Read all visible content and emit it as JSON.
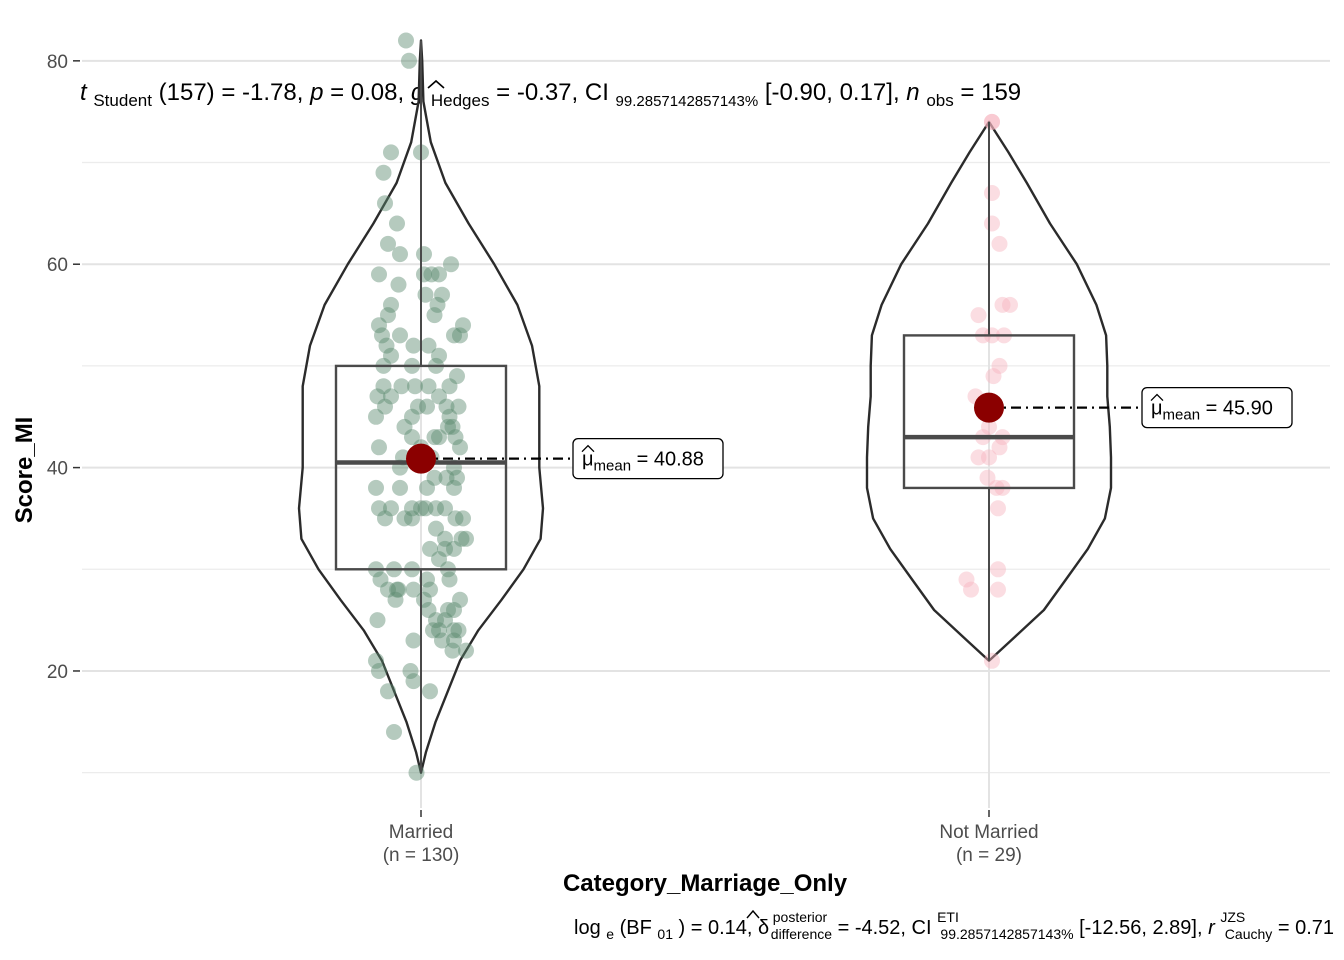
{
  "subtitle": {
    "t_symbol": "t",
    "t_sub": "Student",
    "df": "(157)",
    "t_value": " = -1.78, ",
    "p_symbol": "p",
    "p_value": " = 0.08, ",
    "g_symbol": "g",
    "g_sub": "Hedges",
    "g_value": " = -0.37, ",
    "ci_symbol": "CI",
    "ci_sub": "99.2857142857143%",
    "ci_value": " [-0.90, 0.17], ",
    "n_symbol": "n",
    "n_sub": "obs",
    "n_value": " = 159"
  },
  "caption": {
    "log_text": "log",
    "log_sub": "e",
    "bf_open": "(BF",
    "bf_sub": "01",
    "bf_value": ") = 0.14, ",
    "delta_symbol": "δ",
    "delta_sup": "posterior",
    "delta_sub": "difference",
    "delta_value": " = -4.52, ",
    "ci_symbol": "CI",
    "ci_sup": "ETI",
    "ci_sub": "99.2857142857143%",
    "ci_value": " [-12.56, 2.89], ",
    "r_symbol": "r",
    "r_sup": "JZS",
    "r_sub": "Cauchy",
    "r_value": " = 0.71"
  },
  "chart_data": {
    "type": "violin-box-scatter",
    "xlabel": "Category_Marriage_Only",
    "ylabel": "Score_MI",
    "ylim": [
      8,
      85
    ],
    "yticks": [
      20,
      40,
      60,
      80
    ],
    "grid": true,
    "groups": [
      {
        "category": "Married",
        "n_label": "(n = 130)",
        "color": "#5a8a6e",
        "box": {
          "q1": 30,
          "median": 40.5,
          "q3": 50,
          "whisker_low": 10,
          "whisker_high": 82
        },
        "mean": 40.88,
        "mean_label_mu": "μ",
        "mean_label_sub": "mean",
        "mean_label_value": " = 40.88",
        "violin": [
          [
            10,
            0.0
          ],
          [
            12,
            0.04
          ],
          [
            15,
            0.12
          ],
          [
            18,
            0.22
          ],
          [
            21,
            0.32
          ],
          [
            24,
            0.47
          ],
          [
            27,
            0.66
          ],
          [
            30,
            0.84
          ],
          [
            33,
            0.98
          ],
          [
            36,
            1.0
          ],
          [
            40,
            0.97
          ],
          [
            44,
            0.97
          ],
          [
            48,
            0.97
          ],
          [
            52,
            0.91
          ],
          [
            56,
            0.79
          ],
          [
            60,
            0.6
          ],
          [
            64,
            0.39
          ],
          [
            68,
            0.2
          ],
          [
            72,
            0.08
          ],
          [
            76,
            0.02
          ],
          [
            80,
            0.01
          ],
          [
            82,
            0.0
          ]
        ],
        "points": [
          [
            -0.1,
            82
          ],
          [
            -0.08,
            80
          ],
          [
            -0.2,
            71
          ],
          [
            0.0,
            71
          ],
          [
            -0.25,
            69
          ],
          [
            -0.24,
            66
          ],
          [
            -0.16,
            64
          ],
          [
            -0.22,
            62
          ],
          [
            -0.14,
            61
          ],
          [
            0.02,
            61
          ],
          [
            0.2,
            60
          ],
          [
            -0.28,
            59
          ],
          [
            0.02,
            59
          ],
          [
            0.07,
            59
          ],
          [
            0.12,
            59
          ],
          [
            -0.15,
            58
          ],
          [
            0.03,
            57
          ],
          [
            0.14,
            57
          ],
          [
            0.11,
            56
          ],
          [
            -0.2,
            56
          ],
          [
            -0.22,
            55
          ],
          [
            0.09,
            55
          ],
          [
            0.28,
            54
          ],
          [
            0.26,
            53
          ],
          [
            -0.28,
            54
          ],
          [
            -0.26,
            53
          ],
          [
            -0.14,
            53
          ],
          [
            0.22,
            53
          ],
          [
            -0.23,
            52
          ],
          [
            0.05,
            52
          ],
          [
            0.12,
            51
          ],
          [
            -0.2,
            51
          ],
          [
            -0.25,
            50
          ],
          [
            -0.06,
            50
          ],
          [
            0.1,
            50
          ],
          [
            0.24,
            49
          ],
          [
            -0.25,
            48
          ],
          [
            -0.13,
            48
          ],
          [
            -0.04,
            48
          ],
          [
            0.05,
            48
          ],
          [
            0.19,
            48
          ],
          [
            -0.2,
            47
          ],
          [
            0.12,
            47
          ],
          [
            0.25,
            46
          ],
          [
            -0.29,
            47
          ],
          [
            -0.24,
            46
          ],
          [
            -0.02,
            46
          ],
          [
            0.04,
            46
          ],
          [
            0.17,
            46
          ],
          [
            -0.3,
            45
          ],
          [
            -0.06,
            45
          ],
          [
            0.19,
            45
          ],
          [
            -0.11,
            44
          ],
          [
            0.21,
            44
          ],
          [
            0.12,
            43
          ],
          [
            -0.06,
            43
          ],
          [
            0.09,
            43
          ],
          [
            0.23,
            43
          ],
          [
            -0.28,
            42
          ],
          [
            0.0,
            42
          ],
          [
            0.26,
            42
          ],
          [
            -0.12,
            41
          ],
          [
            0.07,
            41
          ],
          [
            0.22,
            40
          ],
          [
            -0.14,
            40
          ],
          [
            0.09,
            39
          ],
          [
            0.24,
            39
          ],
          [
            0.17,
            39
          ],
          [
            -0.14,
            38
          ],
          [
            0.04,
            38
          ],
          [
            0.22,
            38
          ],
          [
            -0.2,
            36
          ],
          [
            -0.06,
            36
          ],
          [
            0.03,
            36
          ],
          [
            0.16,
            36
          ],
          [
            -0.28,
            36
          ],
          [
            -0.24,
            35
          ],
          [
            -0.11,
            35
          ],
          [
            -0.06,
            35
          ],
          [
            0.23,
            35
          ],
          [
            0.28,
            35
          ],
          [
            0.1,
            34
          ],
          [
            0.16,
            33
          ],
          [
            0.3,
            33
          ],
          [
            0.06,
            32
          ],
          [
            0.12,
            31
          ],
          [
            0.22,
            32
          ],
          [
            0.16,
            32
          ],
          [
            0.18,
            30
          ],
          [
            -0.18,
            30
          ],
          [
            -0.06,
            30
          ],
          [
            0.04,
            29
          ],
          [
            -0.3,
            30
          ],
          [
            -0.27,
            29
          ],
          [
            0.19,
            29
          ],
          [
            -0.22,
            28
          ],
          [
            -0.16,
            28
          ],
          [
            -0.05,
            28
          ],
          [
            0.06,
            28
          ],
          [
            -0.17,
            27
          ],
          [
            0.02,
            27
          ],
          [
            0.18,
            26
          ],
          [
            0.26,
            27
          ],
          [
            0.22,
            26
          ],
          [
            0.05,
            26
          ],
          [
            -0.29,
            25
          ],
          [
            0.1,
            25
          ],
          [
            0.16,
            25
          ],
          [
            0.25,
            24
          ],
          [
            0.22,
            24
          ],
          [
            0.08,
            24
          ],
          [
            0.14,
            23
          ],
          [
            0.22,
            23
          ],
          [
            -0.05,
            23
          ],
          [
            0.21,
            22
          ],
          [
            0.3,
            22
          ],
          [
            -0.3,
            21
          ],
          [
            -0.28,
            20
          ],
          [
            -0.07,
            20
          ],
          [
            -0.05,
            19
          ],
          [
            -0.22,
            18
          ],
          [
            0.06,
            18
          ],
          [
            -0.18,
            14
          ],
          [
            -0.03,
            10
          ],
          [
            0.27,
            33
          ],
          [
            -0.15,
            28
          ],
          [
            0.1,
            36
          ],
          [
            -0.3,
            38
          ],
          [
            0.18,
            44
          ],
          [
            -0.05,
            52
          ],
          [
            0.0,
            36
          ],
          [
            0.12,
            24
          ]
        ]
      },
      {
        "category": "Not Married",
        "n_label": "(n = 29)",
        "color": "#f7b3bf",
        "box": {
          "q1": 38,
          "median": 43,
          "q3": 53,
          "whisker_low": 21,
          "whisker_high": 74
        },
        "mean": 45.9,
        "mean_label_mu": "μ",
        "mean_label_sub": "mean",
        "mean_label_value": " = 45.90",
        "violin": [
          [
            21,
            0.0
          ],
          [
            23,
            0.18
          ],
          [
            26,
            0.45
          ],
          [
            29,
            0.63
          ],
          [
            32,
            0.81
          ],
          [
            35,
            0.95
          ],
          [
            38,
            1.0
          ],
          [
            41,
            1.0
          ],
          [
            44,
            0.99
          ],
          [
            47,
            0.97
          ],
          [
            50,
            0.97
          ],
          [
            53,
            0.96
          ],
          [
            56,
            0.88
          ],
          [
            60,
            0.72
          ],
          [
            64,
            0.5
          ],
          [
            68,
            0.31
          ],
          [
            71,
            0.16
          ],
          [
            74,
            0.0
          ]
        ],
        "points": [
          [
            0.02,
            74
          ],
          [
            0.02,
            74
          ],
          [
            0.02,
            67
          ],
          [
            0.02,
            64
          ],
          [
            0.07,
            62
          ],
          [
            0.14,
            56
          ],
          [
            0.09,
            56
          ],
          [
            -0.07,
            55
          ],
          [
            0.02,
            53
          ],
          [
            -0.04,
            53
          ],
          [
            0.1,
            53
          ],
          [
            0.07,
            50
          ],
          [
            -0.09,
            47
          ],
          [
            0.03,
            49
          ],
          [
            -0.04,
            43
          ],
          [
            0.07,
            42
          ],
          [
            0.09,
            43
          ],
          [
            -0.07,
            41
          ],
          [
            0.0,
            41
          ],
          [
            0.09,
            38
          ],
          [
            0.05,
            38
          ],
          [
            -0.01,
            39
          ],
          [
            0.06,
            36
          ],
          [
            -0.15,
            29
          ],
          [
            -0.12,
            28
          ],
          [
            0.06,
            30
          ],
          [
            0.06,
            28
          ],
          [
            0.02,
            21
          ],
          [
            0.0,
            44
          ]
        ]
      }
    ]
  }
}
